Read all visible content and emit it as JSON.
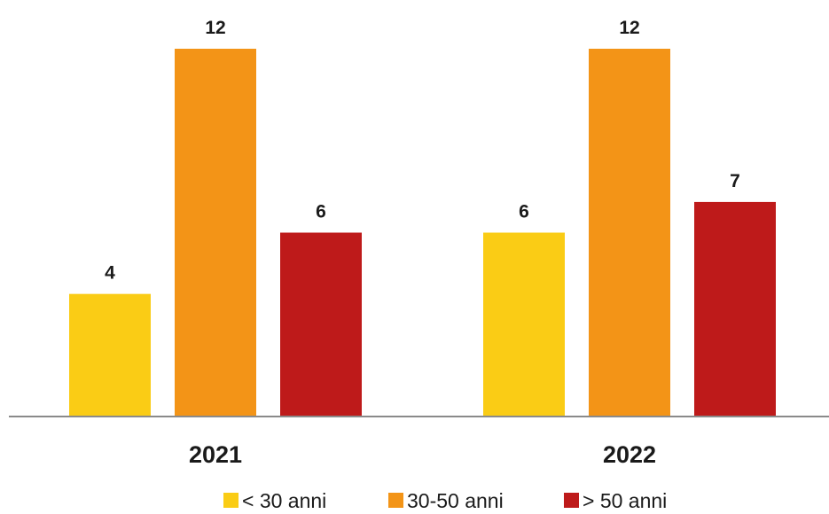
{
  "chart_data": {
    "type": "bar",
    "categories": [
      "2021",
      "2022"
    ],
    "series": [
      {
        "name": "< 30 anni",
        "values": [
          4,
          6
        ],
        "color": "#FACC15"
      },
      {
        "name": "30-50 anni",
        "values": [
          12,
          12
        ],
        "color": "#F39417"
      },
      {
        "name": "> 50 anni",
        "values": [
          6,
          7
        ],
        "color": "#BE1A1A"
      }
    ],
    "title": "",
    "xlabel": "",
    "ylabel": "",
    "ylim": [
      0,
      12
    ],
    "grid": false,
    "legend": "bottom",
    "data_labels": true
  }
}
